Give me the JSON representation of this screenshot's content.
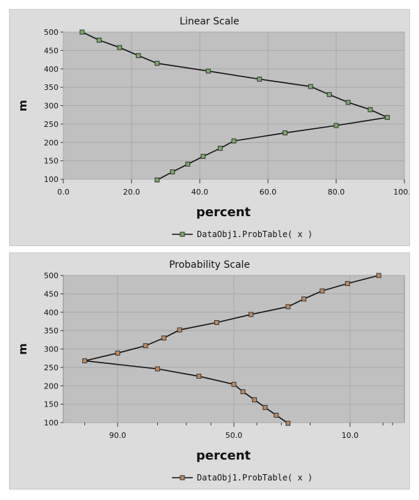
{
  "chart_data": [
    {
      "type": "line",
      "title": "Linear Scale",
      "xlabel": "percent",
      "ylabel": "m",
      "xlim": [
        0,
        100
      ],
      "ylim": [
        100,
        500
      ],
      "x_ticks": [
        "0.0",
        "20.0",
        "40.0",
        "60.0",
        "80.0",
        "100.0"
      ],
      "y_ticks": [
        "100",
        "150",
        "200",
        "250",
        "300",
        "350",
        "400",
        "450",
        "500"
      ],
      "grid": true,
      "legend_position": "bottom",
      "marker_color": "#7aaa6a",
      "series": [
        {
          "name": "DataObj1.ProbTable( x )",
          "x": [
            5.5,
            10.5,
            16.5,
            22,
            27.5,
            42.5,
            57.5,
            72.5,
            78,
            83.5,
            90,
            95,
            80,
            65,
            50,
            46,
            41,
            36.5,
            32,
            27.5
          ],
          "y": [
            500,
            478,
            458,
            436,
            415,
            394,
            372,
            352,
            330,
            309,
            289,
            268,
            246,
            226,
            204,
            184,
            162,
            141,
            120,
            98
          ]
        }
      ]
    },
    {
      "type": "line",
      "title": "Probability Scale",
      "xlabel": "percent",
      "ylabel": "m",
      "x_scale": "probability",
      "xlim": [
        97,
        3
      ],
      "ylim": [
        100,
        500
      ],
      "x_ticks": [
        "90.0",
        "50.0",
        "10.0"
      ],
      "y_ticks": [
        "100",
        "150",
        "200",
        "250",
        "300",
        "350",
        "400",
        "450",
        "500"
      ],
      "grid": true,
      "legend_position": "bottom",
      "marker_color": "#c08a60",
      "series": [
        {
          "name": "DataObj1.ProbTable( x )",
          "x": [
            5.5,
            10.5,
            16.5,
            22,
            27.5,
            42.5,
            57.5,
            72.5,
            78,
            83.5,
            90,
            95,
            80,
            65,
            50,
            46,
            41,
            36.5,
            32,
            27.5
          ],
          "y": [
            500,
            478,
            458,
            436,
            415,
            394,
            372,
            352,
            330,
            309,
            289,
            268,
            246,
            226,
            204,
            184,
            162,
            141,
            120,
            98
          ]
        }
      ]
    }
  ]
}
